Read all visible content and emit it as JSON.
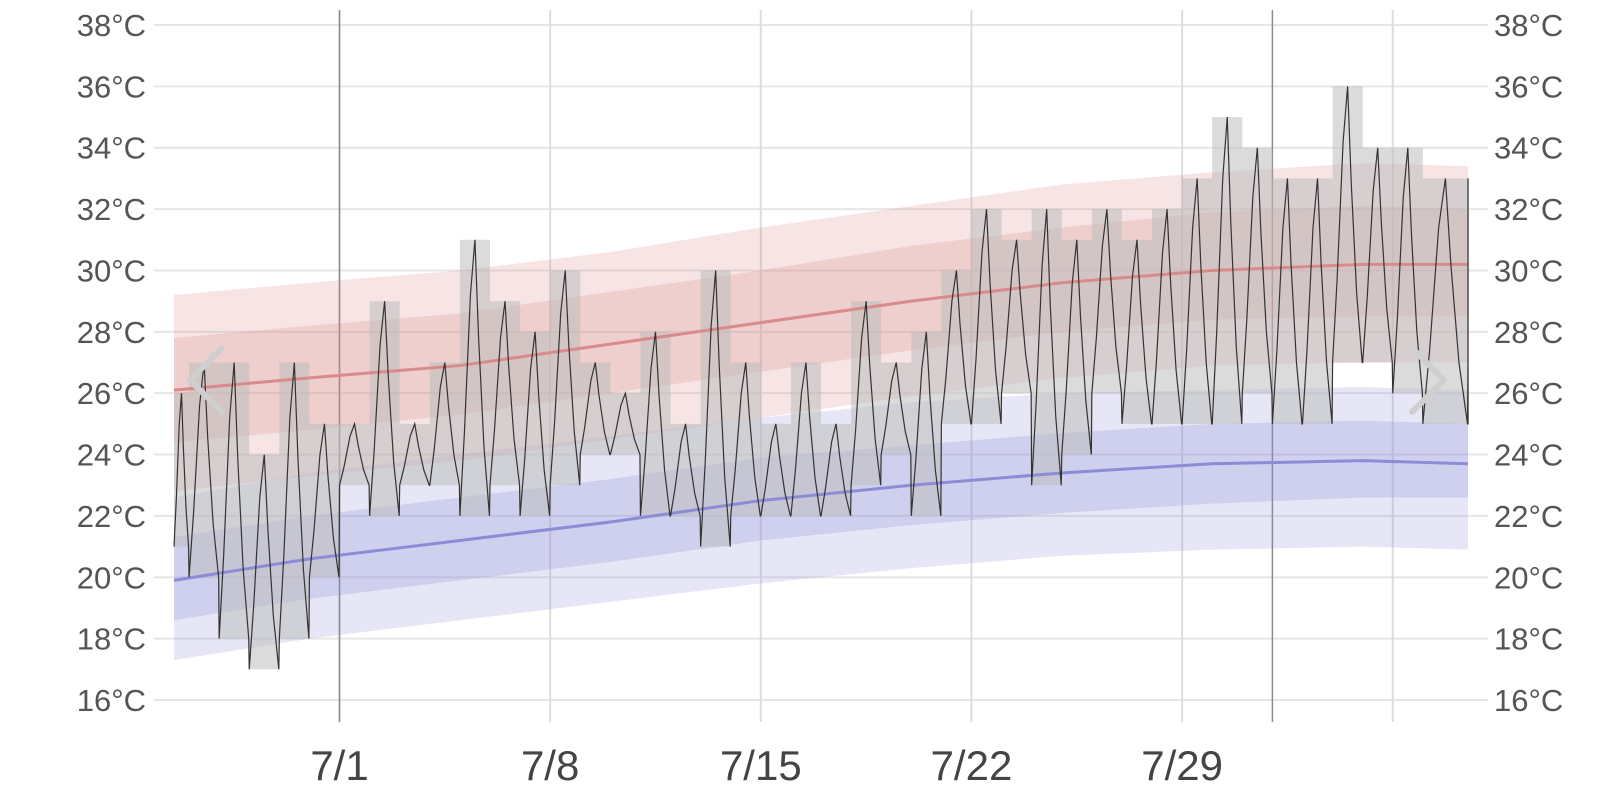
{
  "chart_data": {
    "type": "line",
    "y_unit": "°C",
    "ylim": [
      16,
      38
    ],
    "y_ticks": [
      16,
      18,
      20,
      22,
      24,
      26,
      28,
      30,
      32,
      34,
      36,
      38
    ],
    "y_tick_labels": [
      "16°C",
      "18°C",
      "20°C",
      "22°C",
      "24°C",
      "26°C",
      "28°C",
      "30°C",
      "32°C",
      "34°C",
      "36°C",
      "38°C"
    ],
    "x_axis": "day",
    "xlim": [
      -4.5,
      38.5
    ],
    "x_ticks": [
      1,
      8,
      15,
      22,
      29
    ],
    "x_tick_labels": [
      "7/1",
      "7/8",
      "7/15",
      "7/22",
      "7/29"
    ],
    "grid": true,
    "dark_vertical_lines_at_day": [
      1,
      32
    ],
    "normal_high": {
      "color": "#d98a8a",
      "mean": [
        [
          -4.5,
          26.1
        ],
        [
          0,
          26.5
        ],
        [
          5,
          26.9
        ],
        [
          10,
          27.6
        ],
        [
          15,
          28.3
        ],
        [
          20,
          29.0
        ],
        [
          25,
          29.6
        ],
        [
          30,
          30.0
        ],
        [
          35,
          30.2
        ],
        [
          38.5,
          30.2
        ]
      ],
      "inner_band": [
        [
          -4.5,
          24.4,
          27.8
        ],
        [
          0,
          24.8,
          28.2
        ],
        [
          5,
          25.3,
          28.6
        ],
        [
          10,
          26.0,
          29.3
        ],
        [
          15,
          26.7,
          30.0
        ],
        [
          20,
          27.4,
          30.8
        ],
        [
          25,
          28.0,
          31.4
        ],
        [
          30,
          28.4,
          31.9
        ],
        [
          35,
          28.5,
          32.1
        ],
        [
          38.5,
          28.5,
          32.0
        ]
      ],
      "outer_band": [
        [
          -4.5,
          22.8,
          29.2
        ],
        [
          0,
          23.3,
          29.6
        ],
        [
          5,
          23.8,
          30.0
        ],
        [
          10,
          24.5,
          30.6
        ],
        [
          15,
          25.2,
          31.4
        ],
        [
          20,
          25.9,
          32.1
        ],
        [
          25,
          26.5,
          32.8
        ],
        [
          30,
          26.9,
          33.2
        ],
        [
          35,
          27.0,
          33.5
        ],
        [
          38.5,
          27.0,
          33.4
        ]
      ]
    },
    "normal_low": {
      "color": "#8c8cd6",
      "mean": [
        [
          -4.5,
          19.9
        ],
        [
          0,
          20.6
        ],
        [
          5,
          21.2
        ],
        [
          10,
          21.8
        ],
        [
          15,
          22.5
        ],
        [
          20,
          23.0
        ],
        [
          25,
          23.4
        ],
        [
          30,
          23.7
        ],
        [
          35,
          23.8
        ],
        [
          38.5,
          23.7
        ]
      ],
      "inner_band": [
        [
          -4.5,
          18.6,
          21.3
        ],
        [
          0,
          19.3,
          22.0
        ],
        [
          5,
          19.9,
          22.6
        ],
        [
          10,
          20.5,
          23.2
        ],
        [
          15,
          21.2,
          23.9
        ],
        [
          20,
          21.7,
          24.3
        ],
        [
          25,
          22.1,
          24.7
        ],
        [
          30,
          22.4,
          25.0
        ],
        [
          35,
          22.6,
          25.1
        ],
        [
          38.5,
          22.6,
          25.0
        ]
      ],
      "outer_band": [
        [
          -4.5,
          17.3,
          22.6
        ],
        [
          0,
          18.0,
          23.4
        ],
        [
          5,
          18.6,
          24.0
        ],
        [
          10,
          19.2,
          24.6
        ],
        [
          15,
          19.8,
          25.2
        ],
        [
          20,
          20.3,
          25.7
        ],
        [
          25,
          20.7,
          26.0
        ],
        [
          30,
          20.9,
          26.1
        ],
        [
          35,
          21.0,
          26.2
        ],
        [
          38.5,
          20.9,
          26.1
        ]
      ]
    },
    "observed_daily_range": {
      "color": "#bdbdbd",
      "days": [
        [
          -4.5,
          21,
          26
        ],
        [
          -4,
          20,
          27
        ],
        [
          -3,
          18,
          27
        ],
        [
          -2,
          17,
          24
        ],
        [
          -1,
          18,
          27
        ],
        [
          0,
          20,
          25
        ],
        [
          1,
          23,
          25
        ],
        [
          2,
          22,
          29
        ],
        [
          3,
          23,
          25
        ],
        [
          4,
          23,
          27
        ],
        [
          5,
          22,
          31
        ],
        [
          6,
          23,
          29
        ],
        [
          7,
          22,
          28
        ],
        [
          8,
          23,
          30
        ],
        [
          9,
          24,
          27
        ],
        [
          10,
          24,
          26
        ],
        [
          11,
          22,
          28
        ],
        [
          12,
          22,
          25
        ],
        [
          13,
          21,
          30
        ],
        [
          14,
          22,
          27
        ],
        [
          15,
          22,
          25
        ],
        [
          16,
          22,
          27
        ],
        [
          17,
          22,
          25
        ],
        [
          18,
          23,
          29
        ],
        [
          19,
          24,
          27
        ],
        [
          20,
          22,
          28
        ],
        [
          21,
          25,
          30
        ],
        [
          22,
          25,
          32
        ],
        [
          23,
          26,
          31
        ],
        [
          24,
          23,
          32
        ],
        [
          25,
          24,
          31
        ],
        [
          26,
          26,
          32
        ],
        [
          27,
          25,
          31
        ],
        [
          28,
          25,
          32
        ],
        [
          29,
          25,
          33
        ],
        [
          30,
          25,
          35
        ],
        [
          31,
          26,
          34
        ],
        [
          32,
          25,
          33
        ],
        [
          33,
          25,
          33
        ],
        [
          34,
          27,
          36
        ],
        [
          35,
          27,
          34
        ],
        [
          36,
          26,
          34
        ],
        [
          37,
          25,
          33
        ],
        [
          38.5,
          25,
          33
        ]
      ]
    }
  },
  "navigation": {
    "prev_icon": "chevron-left-icon",
    "next_icon": "chevron-right-icon"
  }
}
